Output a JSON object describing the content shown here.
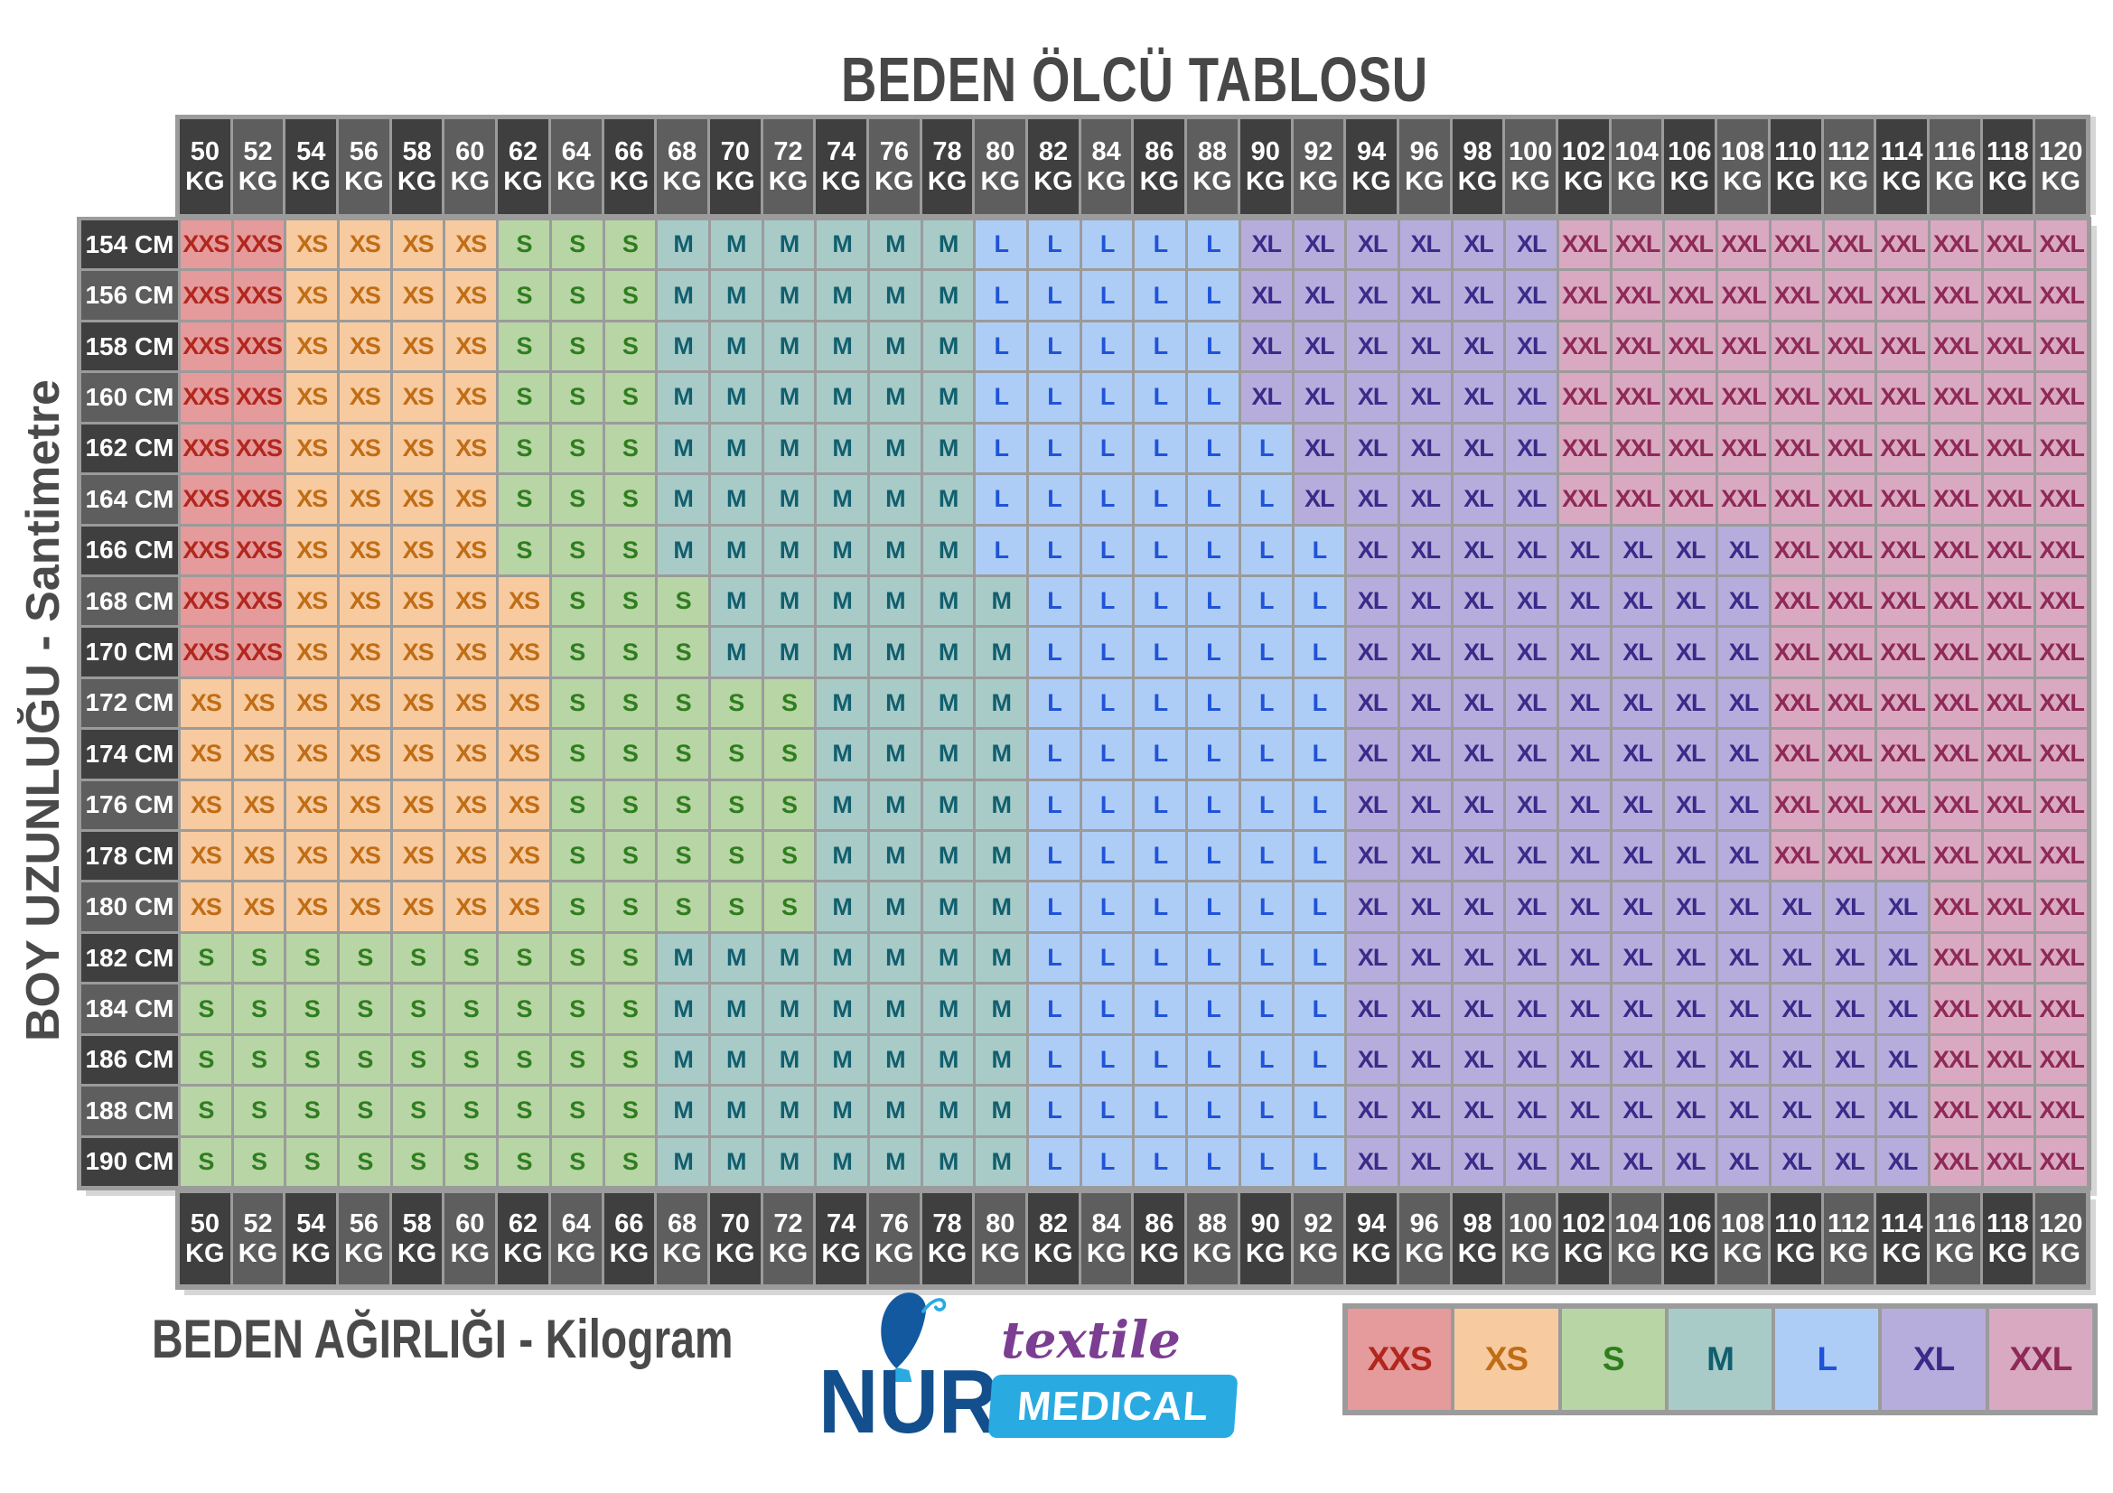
{
  "title": "BEDEN ÖLCÜ TABLOSU",
  "y_axis_label": "BOY UZUNLUĞU - Santimetre",
  "x_axis_label": "BEDEN AĞIRLIĞI - Kilogram",
  "logo": {
    "brand": "NUR",
    "line1": "textile",
    "line2": "MEDICAL"
  },
  "legend": [
    "XXS",
    "XS",
    "S",
    "M",
    "L",
    "XL",
    "XXL"
  ],
  "colors": {
    "grid": "#9b9b9b",
    "header_dark": "#3f3f3f",
    "header_light": "#5e5e5e",
    "header_text": "#ffffff",
    "label_text": "#4a4a4a",
    "logo_navy": "#134f8c",
    "logo_blue": "#29abe2",
    "logo_purple": "#7b3e92"
  },
  "size_colors": {
    "XXS": {
      "bg": "#e59a9b",
      "fg": "#b2271d"
    },
    "XS": {
      "bg": "#f7caa0",
      "fg": "#c06d15"
    },
    "S": {
      "bg": "#b8d5a5",
      "fg": "#2f7e1e"
    },
    "M": {
      "bg": "#a8cbc8",
      "fg": "#115f6e"
    },
    "L": {
      "bg": "#aecdf6",
      "fg": "#1f53d8"
    },
    "XL": {
      "bg": "#b6addd",
      "fg": "#3a2b89"
    },
    "XXL": {
      "bg": "#d9a9c1",
      "fg": "#8e2958"
    }
  },
  "chart_data": {
    "type": "table",
    "title": "BEDEN ÖLCÜ TABLOSU",
    "x_label": "BEDEN AĞIRLIĞI - Kilogram",
    "y_label": "BOY UZUNLUĞU - Santimetre",
    "x_unit": "KG",
    "y_unit": "CM",
    "weights_kg": [
      50,
      52,
      54,
      56,
      58,
      60,
      62,
      64,
      66,
      68,
      70,
      72,
      74,
      76,
      78,
      80,
      82,
      84,
      86,
      88,
      90,
      92,
      94,
      96,
      98,
      100,
      102,
      104,
      106,
      108,
      110,
      112,
      114,
      116,
      118,
      120
    ],
    "heights_cm": [
      154,
      156,
      158,
      160,
      162,
      164,
      166,
      168,
      170,
      172,
      174,
      176,
      178,
      180,
      182,
      184,
      186,
      188,
      190
    ],
    "sizes": [
      [
        "XXS",
        "XXS",
        "XS",
        "XS",
        "XS",
        "XS",
        "S",
        "S",
        "S",
        "M",
        "M",
        "M",
        "M",
        "M",
        "M",
        "L",
        "L",
        "L",
        "L",
        "L",
        "XL",
        "XL",
        "XL",
        "XL",
        "XL",
        "XL",
        "XXL",
        "XXL",
        "XXL",
        "XXL",
        "XXL",
        "XXL",
        "XXL",
        "XXL",
        "XXL",
        "XXL"
      ],
      [
        "XXS",
        "XXS",
        "XS",
        "XS",
        "XS",
        "XS",
        "S",
        "S",
        "S",
        "M",
        "M",
        "M",
        "M",
        "M",
        "M",
        "L",
        "L",
        "L",
        "L",
        "L",
        "XL",
        "XL",
        "XL",
        "XL",
        "XL",
        "XL",
        "XXL",
        "XXL",
        "XXL",
        "XXL",
        "XXL",
        "XXL",
        "XXL",
        "XXL",
        "XXL",
        "XXL"
      ],
      [
        "XXS",
        "XXS",
        "XS",
        "XS",
        "XS",
        "XS",
        "S",
        "S",
        "S",
        "M",
        "M",
        "M",
        "M",
        "M",
        "M",
        "L",
        "L",
        "L",
        "L",
        "L",
        "XL",
        "XL",
        "XL",
        "XL",
        "XL",
        "XL",
        "XXL",
        "XXL",
        "XXL",
        "XXL",
        "XXL",
        "XXL",
        "XXL",
        "XXL",
        "XXL",
        "XXL"
      ],
      [
        "XXS",
        "XXS",
        "XS",
        "XS",
        "XS",
        "XS",
        "S",
        "S",
        "S",
        "M",
        "M",
        "M",
        "M",
        "M",
        "M",
        "L",
        "L",
        "L",
        "L",
        "L",
        "XL",
        "XL",
        "XL",
        "XL",
        "XL",
        "XL",
        "XXL",
        "XXL",
        "XXL",
        "XXL",
        "XXL",
        "XXL",
        "XXL",
        "XXL",
        "XXL",
        "XXL"
      ],
      [
        "XXS",
        "XXS",
        "XS",
        "XS",
        "XS",
        "XS",
        "S",
        "S",
        "S",
        "M",
        "M",
        "M",
        "M",
        "M",
        "M",
        "L",
        "L",
        "L",
        "L",
        "L",
        "L",
        "XL",
        "XL",
        "XL",
        "XL",
        "XL",
        "XXL",
        "XXL",
        "XXL",
        "XXL",
        "XXL",
        "XXL",
        "XXL",
        "XXL",
        "XXL",
        "XXL"
      ],
      [
        "XXS",
        "XXS",
        "XS",
        "XS",
        "XS",
        "XS",
        "S",
        "S",
        "S",
        "M",
        "M",
        "M",
        "M",
        "M",
        "M",
        "L",
        "L",
        "L",
        "L",
        "L",
        "L",
        "XL",
        "XL",
        "XL",
        "XL",
        "XL",
        "XXL",
        "XXL",
        "XXL",
        "XXL",
        "XXL",
        "XXL",
        "XXL",
        "XXL",
        "XXL",
        "XXL"
      ],
      [
        "XXS",
        "XXS",
        "XS",
        "XS",
        "XS",
        "XS",
        "S",
        "S",
        "S",
        "M",
        "M",
        "M",
        "M",
        "M",
        "M",
        "L",
        "L",
        "L",
        "L",
        "L",
        "L",
        "L",
        "XL",
        "XL",
        "XL",
        "XL",
        "XL",
        "XL",
        "XL",
        "XL",
        "XXL",
        "XXL",
        "XXL",
        "XXL",
        "XXL",
        "XXL"
      ],
      [
        "XXS",
        "XXS",
        "XS",
        "XS",
        "XS",
        "XS",
        "XS",
        "S",
        "S",
        "S",
        "M",
        "M",
        "M",
        "M",
        "M",
        "M",
        "L",
        "L",
        "L",
        "L",
        "L",
        "L",
        "XL",
        "XL",
        "XL",
        "XL",
        "XL",
        "XL",
        "XL",
        "XL",
        "XXL",
        "XXL",
        "XXL",
        "XXL",
        "XXL",
        "XXL"
      ],
      [
        "XXS",
        "XXS",
        "XS",
        "XS",
        "XS",
        "XS",
        "XS",
        "S",
        "S",
        "S",
        "M",
        "M",
        "M",
        "M",
        "M",
        "M",
        "L",
        "L",
        "L",
        "L",
        "L",
        "L",
        "XL",
        "XL",
        "XL",
        "XL",
        "XL",
        "XL",
        "XL",
        "XL",
        "XXL",
        "XXL",
        "XXL",
        "XXL",
        "XXL",
        "XXL"
      ],
      [
        "XS",
        "XS",
        "XS",
        "XS",
        "XS",
        "XS",
        "XS",
        "S",
        "S",
        "S",
        "S",
        "S",
        "M",
        "M",
        "M",
        "M",
        "L",
        "L",
        "L",
        "L",
        "L",
        "L",
        "XL",
        "XL",
        "XL",
        "XL",
        "XL",
        "XL",
        "XL",
        "XL",
        "XXL",
        "XXL",
        "XXL",
        "XXL",
        "XXL",
        "XXL"
      ],
      [
        "XS",
        "XS",
        "XS",
        "XS",
        "XS",
        "XS",
        "XS",
        "S",
        "S",
        "S",
        "S",
        "S",
        "M",
        "M",
        "M",
        "M",
        "L",
        "L",
        "L",
        "L",
        "L",
        "L",
        "XL",
        "XL",
        "XL",
        "XL",
        "XL",
        "XL",
        "XL",
        "XL",
        "XXL",
        "XXL",
        "XXL",
        "XXL",
        "XXL",
        "XXL"
      ],
      [
        "XS",
        "XS",
        "XS",
        "XS",
        "XS",
        "XS",
        "XS",
        "S",
        "S",
        "S",
        "S",
        "S",
        "M",
        "M",
        "M",
        "M",
        "L",
        "L",
        "L",
        "L",
        "L",
        "L",
        "XL",
        "XL",
        "XL",
        "XL",
        "XL",
        "XL",
        "XL",
        "XL",
        "XXL",
        "XXL",
        "XXL",
        "XXL",
        "XXL",
        "XXL"
      ],
      [
        "XS",
        "XS",
        "XS",
        "XS",
        "XS",
        "XS",
        "XS",
        "S",
        "S",
        "S",
        "S",
        "S",
        "M",
        "M",
        "M",
        "M",
        "L",
        "L",
        "L",
        "L",
        "L",
        "L",
        "XL",
        "XL",
        "XL",
        "XL",
        "XL",
        "XL",
        "XL",
        "XL",
        "XXL",
        "XXL",
        "XXL",
        "XXL",
        "XXL",
        "XXL"
      ],
      [
        "XS",
        "XS",
        "XS",
        "XS",
        "XS",
        "XS",
        "XS",
        "S",
        "S",
        "S",
        "S",
        "S",
        "M",
        "M",
        "M",
        "M",
        "L",
        "L",
        "L",
        "L",
        "L",
        "L",
        "XL",
        "XL",
        "XL",
        "XL",
        "XL",
        "XL",
        "XL",
        "XL",
        "XL",
        "XL",
        "XL",
        "XXL",
        "XXL",
        "XXL"
      ],
      [
        "S",
        "S",
        "S",
        "S",
        "S",
        "S",
        "S",
        "S",
        "S",
        "M",
        "M",
        "M",
        "M",
        "M",
        "M",
        "M",
        "L",
        "L",
        "L",
        "L",
        "L",
        "L",
        "XL",
        "XL",
        "XL",
        "XL",
        "XL",
        "XL",
        "XL",
        "XL",
        "XL",
        "XL",
        "XL",
        "XXL",
        "XXL",
        "XXL"
      ],
      [
        "S",
        "S",
        "S",
        "S",
        "S",
        "S",
        "S",
        "S",
        "S",
        "M",
        "M",
        "M",
        "M",
        "M",
        "M",
        "M",
        "L",
        "L",
        "L",
        "L",
        "L",
        "L",
        "XL",
        "XL",
        "XL",
        "XL",
        "XL",
        "XL",
        "XL",
        "XL",
        "XL",
        "XL",
        "XL",
        "XXL",
        "XXL",
        "XXL"
      ],
      [
        "S",
        "S",
        "S",
        "S",
        "S",
        "S",
        "S",
        "S",
        "S",
        "M",
        "M",
        "M",
        "M",
        "M",
        "M",
        "M",
        "L",
        "L",
        "L",
        "L",
        "L",
        "L",
        "XL",
        "XL",
        "XL",
        "XL",
        "XL",
        "XL",
        "XL",
        "XL",
        "XL",
        "XL",
        "XL",
        "XXL",
        "XXL",
        "XXL"
      ],
      [
        "S",
        "S",
        "S",
        "S",
        "S",
        "S",
        "S",
        "S",
        "S",
        "M",
        "M",
        "M",
        "M",
        "M",
        "M",
        "M",
        "L",
        "L",
        "L",
        "L",
        "L",
        "L",
        "XL",
        "XL",
        "XL",
        "XL",
        "XL",
        "XL",
        "XL",
        "XL",
        "XL",
        "XL",
        "XL",
        "XXL",
        "XXL",
        "XXL"
      ],
      [
        "S",
        "S",
        "S",
        "S",
        "S",
        "S",
        "S",
        "S",
        "S",
        "M",
        "M",
        "M",
        "M",
        "M",
        "M",
        "M",
        "L",
        "L",
        "L",
        "L",
        "L",
        "L",
        "XL",
        "XL",
        "XL",
        "XL",
        "XL",
        "XL",
        "XL",
        "XL",
        "XL",
        "XL",
        "XL",
        "XXL",
        "XXL",
        "XXL"
      ]
    ]
  }
}
